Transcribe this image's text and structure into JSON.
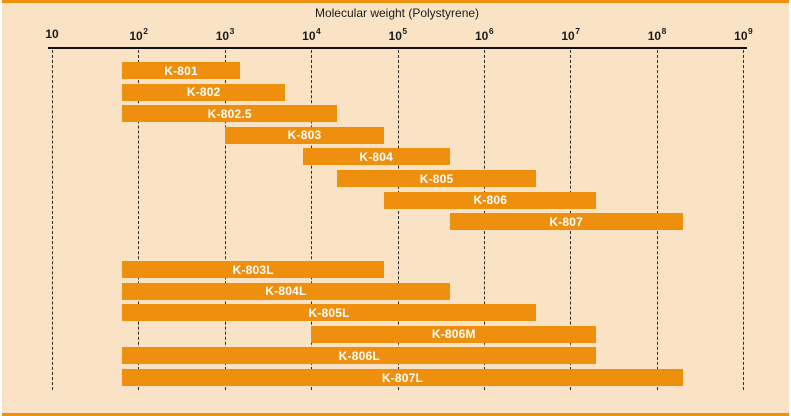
{
  "chart_data": {
    "type": "range-bar",
    "orientation": "horizontal",
    "title": "Molecular weight (Polystyrene)",
    "x_axis": {
      "scale": "log10",
      "min": 10,
      "max": 1000000000,
      "tick_base": "10",
      "tick_exponents": [
        1,
        2,
        3,
        4,
        5,
        6,
        7,
        8,
        9
      ]
    },
    "grid": "dashed-vertical",
    "legend": "none",
    "colors": {
      "background": "#FAE3C5",
      "bar": "#EE8F0E",
      "bar_label": "#FFFFFF",
      "axis": "#111111",
      "grid": "#2B2B2B",
      "border_strip": "#EE8F0E",
      "text": "#1A1A1A"
    },
    "groups": [
      {
        "bars": [
          {
            "label": "K-801",
            "mw_min": 65,
            "mw_max": 1500
          },
          {
            "label": "K-802",
            "mw_min": 65,
            "mw_max": 5000
          },
          {
            "label": "K-802.5",
            "mw_min": 65,
            "mw_max": 20000
          },
          {
            "label": "K-803",
            "mw_min": 1000,
            "mw_max": 70000
          },
          {
            "label": "K-804",
            "mw_min": 8000,
            "mw_max": 400000
          },
          {
            "label": "K-805",
            "mw_min": 20000,
            "mw_max": 4000000
          },
          {
            "label": "K-806",
            "mw_min": 70000,
            "mw_max": 20000000
          },
          {
            "label": "K-807",
            "mw_min": 400000,
            "mw_max": 200000000
          }
        ]
      },
      {
        "bars": [
          {
            "label": "K-803L",
            "mw_min": 65,
            "mw_max": 70000
          },
          {
            "label": "K-804L",
            "mw_min": 65,
            "mw_max": 400000
          },
          {
            "label": "K-805L",
            "mw_min": 65,
            "mw_max": 4000000
          },
          {
            "label": "K-806M",
            "mw_min": 10000,
            "mw_max": 20000000
          },
          {
            "label": "K-806L",
            "mw_min": 65,
            "mw_max": 20000000
          },
          {
            "label": "K-807L",
            "mw_min": 65,
            "mw_max": 200000000
          }
        ]
      }
    ]
  }
}
